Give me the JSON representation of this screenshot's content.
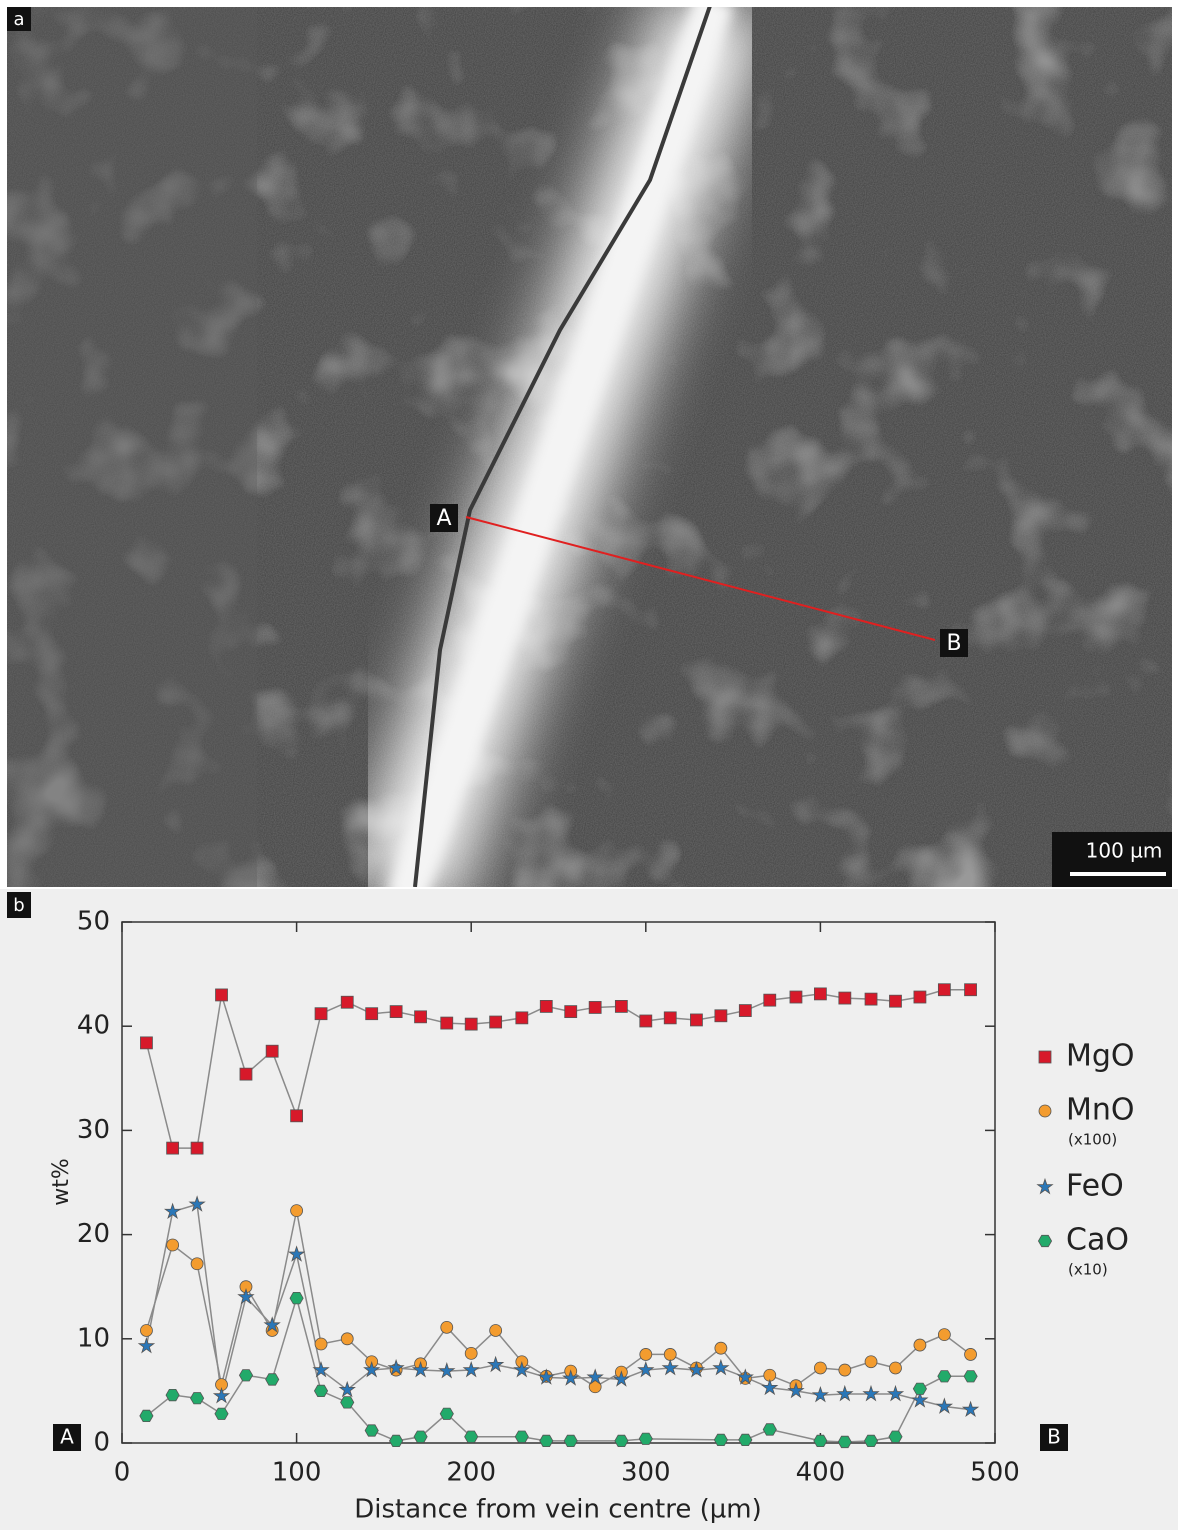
{
  "panel_a": {
    "label": "a",
    "point_a": "A",
    "point_b": "B",
    "scale_bar": "100 µm"
  },
  "chart_data": {
    "type": "line",
    "panel_label": "b",
    "xlabel": "Distance from vein centre (µm)",
    "ylabel": "wt%",
    "start_label": "A",
    "end_label": "B",
    "xlim": [
      0,
      500
    ],
    "xticks": [
      0,
      100,
      200,
      300,
      400,
      500
    ],
    "ylim": [
      0,
      50
    ],
    "yticks": [
      0,
      10,
      20,
      30,
      40,
      50
    ],
    "x": [
      14,
      29,
      43,
      57,
      71,
      86,
      100,
      114,
      129,
      143,
      157,
      171,
      186,
      200,
      214,
      229,
      243,
      257,
      271,
      286,
      300,
      314,
      329,
      343,
      357,
      371,
      386,
      400,
      414,
      429,
      443,
      457,
      471,
      486
    ],
    "line_color": "#8a8a8a",
    "series": [
      {
        "name": "MgO",
        "marker": "square",
        "color": "#d7192a",
        "values": [
          38.4,
          28.3,
          28.3,
          43.0,
          35.4,
          37.6,
          31.4,
          41.2,
          42.3,
          41.2,
          41.4,
          40.9,
          40.3,
          40.2,
          40.4,
          40.8,
          41.9,
          41.4,
          41.8,
          41.9,
          40.5,
          40.8,
          40.6,
          41.0,
          41.5,
          42.5,
          42.8,
          43.1,
          42.7,
          42.6,
          42.4,
          42.8,
          43.5,
          43.5
        ]
      },
      {
        "name": "MnO",
        "note": "(x100)",
        "marker": "circle",
        "color": "#f39c2f",
        "values": [
          10.8,
          19.0,
          17.2,
          5.6,
          15.0,
          10.8,
          22.3,
          9.5,
          10.0,
          7.8,
          7.0,
          7.6,
          11.1,
          8.6,
          10.8,
          7.8,
          6.4,
          6.9,
          5.4,
          6.8,
          8.5,
          8.5,
          7.2,
          9.1,
          6.2,
          6.5,
          5.5,
          7.2,
          7.0,
          7.8,
          7.2,
          9.4,
          10.4,
          8.5
        ]
      },
      {
        "name": "FeO",
        "marker": "star",
        "color": "#2a77b8",
        "values": [
          9.3,
          22.2,
          22.9,
          4.5,
          14.0,
          11.3,
          18.1,
          7.0,
          5.1,
          7.0,
          7.2,
          7.0,
          6.9,
          7.0,
          7.5,
          7.0,
          6.3,
          6.2,
          6.3,
          6.1,
          7.0,
          7.2,
          7.0,
          7.2,
          6.3,
          5.3,
          5.0,
          4.6,
          4.7,
          4.7,
          4.7,
          4.1,
          3.5,
          3.2
        ]
      },
      {
        "name": "CaO",
        "note": "(x10)",
        "marker": "hexagon",
        "color": "#22aa6a",
        "x": [
          14,
          29,
          43,
          57,
          71,
          86,
          100,
          114,
          129,
          143,
          157,
          171,
          186,
          200,
          229,
          243,
          257,
          286,
          300,
          343,
          357,
          371,
          400,
          414,
          429,
          443,
          457,
          471,
          486
        ],
        "values": [
          2.6,
          4.6,
          4.3,
          2.8,
          6.5,
          6.1,
          13.9,
          5.0,
          3.9,
          1.2,
          0.2,
          0.6,
          2.8,
          0.6,
          0.6,
          0.2,
          0.2,
          0.2,
          0.4,
          0.3,
          0.3,
          1.3,
          0.2,
          0.1,
          0.2,
          0.6,
          5.2,
          6.4,
          6.4
        ]
      }
    ]
  }
}
